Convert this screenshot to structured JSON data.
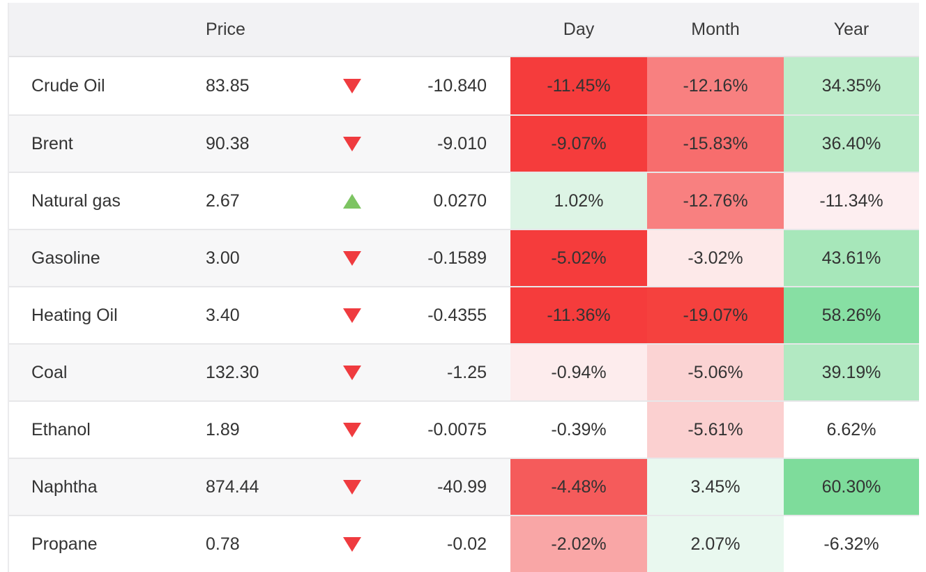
{
  "table": {
    "headers": {
      "name": "",
      "price": "Price",
      "day": "Day",
      "month": "Month",
      "year": "Year"
    },
    "rows": [
      {
        "name": "Crude Oil",
        "price": "83.85",
        "direction": "down",
        "change": "-10.840",
        "day": {
          "text": "-11.45%",
          "bg": "#f53c3c"
        },
        "month": {
          "text": "-12.16%",
          "bg": "#f88080"
        },
        "year": {
          "text": "34.35%",
          "bg": "#bdecca"
        }
      },
      {
        "name": "Brent",
        "price": "90.38",
        "direction": "down",
        "change": "-9.010",
        "day": {
          "text": "-9.07%",
          "bg": "#f53c3c"
        },
        "month": {
          "text": "-15.83%",
          "bg": "#f76d6d"
        },
        "year": {
          "text": "36.40%",
          "bg": "#baebc8"
        }
      },
      {
        "name": "Natural gas",
        "price": "2.67",
        "direction": "up",
        "change": "0.0270",
        "day": {
          "text": "1.02%",
          "bg": "#ddf4e5"
        },
        "month": {
          "text": "-12.76%",
          "bg": "#f88080"
        },
        "year": {
          "text": "-11.34%",
          "bg": "#fdeef0"
        }
      },
      {
        "name": "Gasoline",
        "price": "3.00",
        "direction": "down",
        "change": "-0.1589",
        "day": {
          "text": "-5.02%",
          "bg": "#f53c3c"
        },
        "month": {
          "text": "-3.02%",
          "bg": "#fde9e9"
        },
        "year": {
          "text": "43.61%",
          "bg": "#a7e7ba"
        }
      },
      {
        "name": "Heating Oil",
        "price": "3.40",
        "direction": "down",
        "change": "-0.4355",
        "day": {
          "text": "-11.36%",
          "bg": "#f53c3c"
        },
        "month": {
          "text": "-19.07%",
          "bg": "#f5413e"
        },
        "year": {
          "text": "58.26%",
          "bg": "#87dfa3"
        }
      },
      {
        "name": "Coal",
        "price": "132.30",
        "direction": "down",
        "change": "-1.25",
        "day": {
          "text": "-0.94%",
          "bg": "#fdeced"
        },
        "month": {
          "text": "-5.06%",
          "bg": "#fbd3d3"
        },
        "year": {
          "text": "39.19%",
          "bg": "#b2e9c2"
        }
      },
      {
        "name": "Ethanol",
        "price": "1.89",
        "direction": "down",
        "change": "-0.0075",
        "day": {
          "text": "-0.39%",
          "bg": ""
        },
        "month": {
          "text": "-5.61%",
          "bg": "#fbd0d0"
        },
        "year": {
          "text": "6.62%",
          "bg": ""
        }
      },
      {
        "name": "Naphtha",
        "price": "874.44",
        "direction": "down",
        "change": "-40.99",
        "day": {
          "text": "-4.48%",
          "bg": "#f55b5b"
        },
        "month": {
          "text": "3.45%",
          "bg": "#e8f8ef"
        },
        "year": {
          "text": "60.30%",
          "bg": "#7edc9b"
        }
      },
      {
        "name": "Propane",
        "price": "0.78",
        "direction": "down",
        "change": "-0.02",
        "day": {
          "text": "-2.02%",
          "bg": "#f9a6a6"
        },
        "month": {
          "text": "2.07%",
          "bg": "#e9f8ef"
        },
        "year": {
          "text": "-6.32%",
          "bg": ""
        }
      }
    ]
  },
  "colors": {
    "header_bg": "#f2f2f4",
    "alt_row_bg": "#f7f7f8",
    "row_border": "#e7e7e9",
    "text": "#333333",
    "up_arrow": "#7dc462",
    "down_arrow": "#ef3b3f"
  }
}
